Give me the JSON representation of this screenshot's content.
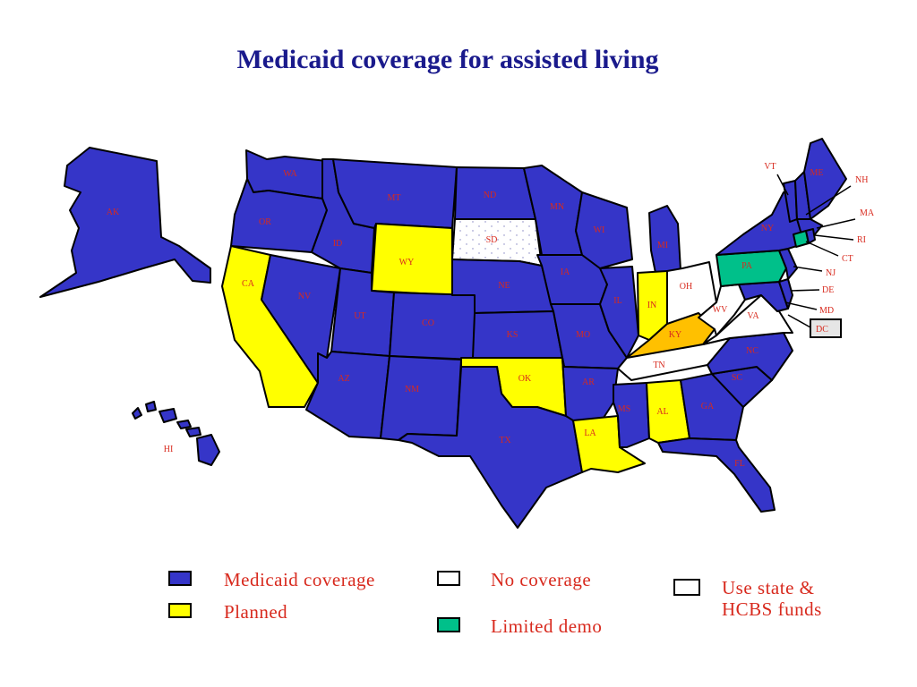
{
  "title": "Medicaid coverage for assisted living",
  "colors": {
    "coverage": "#3535c8",
    "planned": "#ffff00",
    "none": "#ffffff",
    "demo": "#00c08a",
    "state_hcbs": "#ffffff",
    "ky": "#ffc000",
    "label": "#d82a1e",
    "title": "#1a1a8c"
  },
  "legend": {
    "coverage": "Medicaid coverage",
    "planned": "Planned",
    "none": "No coverage",
    "demo": "Limited demo",
    "state_line1": "Use state &",
    "state_line2": "HCBS funds"
  },
  "states": {
    "AK": "AK",
    "HI": "HI",
    "WA": "WA",
    "OR": "OR",
    "CA": "CA",
    "NV": "NV",
    "ID": "ID",
    "MT": "MT",
    "WY": "WY",
    "UT": "UT",
    "AZ": "AZ",
    "CO": "CO",
    "NM": "NM",
    "ND": "ND",
    "SD": "SD",
    "NE": "NE",
    "KS": "KS",
    "OK": "OK",
    "TX": "TX",
    "MN": "MN",
    "IA": "IA",
    "MO": "MO",
    "AR": "AR",
    "LA": "LA",
    "WI": "WI",
    "IL": "IL",
    "MI": "MI",
    "IN": "IN",
    "OH": "OH",
    "KY": "KY",
    "TN": "TN",
    "MS": "MS",
    "AL": "AL",
    "GA": "GA",
    "FL": "FL",
    "SC": "SC",
    "NC": "NC",
    "VA": "VA",
    "WV": "WV",
    "PA": "PA",
    "NY": "NY",
    "VT": "VT",
    "ME": "ME",
    "NH": "NH",
    "MA": "MA",
    "RI": "RI",
    "CT": "CT",
    "NJ": "NJ",
    "DE": "DE",
    "MD": "MD",
    "DC": "DC"
  }
}
